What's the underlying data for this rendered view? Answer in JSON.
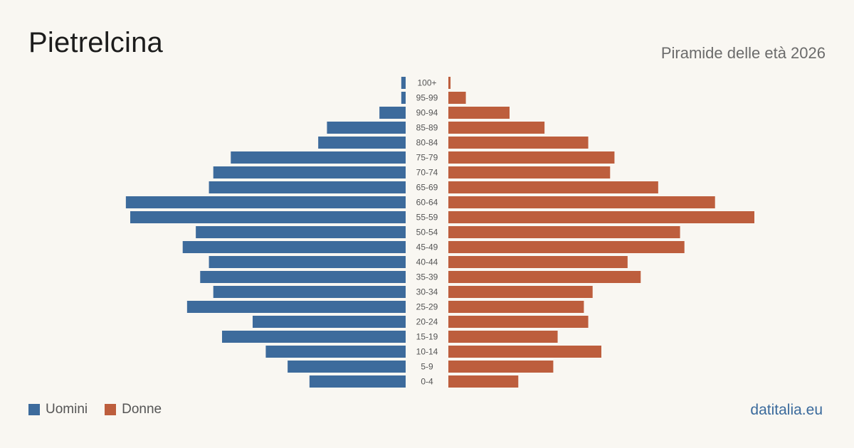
{
  "title": "Pietrelcina",
  "subtitle": "Piramide delle età 2026",
  "brand": "datitalia.eu",
  "legend": {
    "men_label": "Uomini",
    "women_label": "Donne"
  },
  "colors": {
    "men": "#3d6b9c",
    "women": "#bd5e3d",
    "background": "#f9f7f2"
  },
  "chart_data": {
    "type": "bar",
    "orientation": "horizontal-pyramid",
    "categories": [
      "100+",
      "95-99",
      "90-94",
      "85-89",
      "80-84",
      "75-79",
      "70-74",
      "65-69",
      "60-64",
      "55-59",
      "50-54",
      "45-49",
      "40-44",
      "35-39",
      "30-34",
      "25-29",
      "20-24",
      "15-19",
      "10-14",
      "5-9",
      "0-4"
    ],
    "series": [
      {
        "name": "Uomini",
        "side": "left",
        "values": [
          1,
          1,
          6,
          18,
          20,
          40,
          44,
          45,
          64,
          63,
          48,
          51,
          45,
          47,
          44,
          50,
          35,
          42,
          32,
          27,
          22
        ]
      },
      {
        "name": "Donne",
        "side": "right",
        "values": [
          0.5,
          4,
          14,
          22,
          32,
          38,
          37,
          48,
          61,
          70,
          53,
          54,
          41,
          44,
          33,
          31,
          32,
          25,
          35,
          24,
          16
        ]
      }
    ],
    "xlim": [
      0,
      70
    ],
    "grid": false,
    "legend_position": "bottom-left"
  }
}
